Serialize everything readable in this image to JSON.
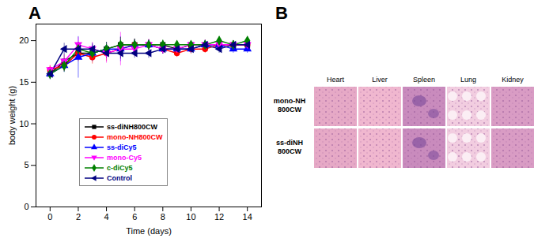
{
  "chart_data": {
    "type": "line",
    "title": "A",
    "x_label": "Time (days)",
    "y_label": "body weight (g)",
    "x": [
      0,
      1,
      2,
      3,
      4,
      5,
      6,
      7,
      8,
      9,
      10,
      11,
      12,
      13,
      14
    ],
    "xlim": [
      -1,
      15
    ],
    "xticks": [
      0,
      2,
      4,
      6,
      8,
      10,
      12,
      14
    ],
    "ylim": [
      0,
      22
    ],
    "yticks": [
      0,
      5,
      10,
      15,
      20
    ],
    "legend": "lower left",
    "series": [
      {
        "name": "ss-diNH800CW",
        "color": "#000000",
        "marker": "square",
        "values": [
          16,
          17.5,
          18.5,
          18.5,
          19,
          19.5,
          19.5,
          19.5,
          19.5,
          19,
          19.5,
          19.5,
          19.5,
          19.5,
          19.5
        ],
        "errors": [
          0.6,
          0.8,
          0.7,
          0.6,
          0.8,
          0.9,
          0.7,
          0.6,
          0.5,
          0.6,
          0.5,
          0.6,
          0.5,
          0.5,
          0.6
        ]
      },
      {
        "name": "mono-NH800CW",
        "color": "#ff0000",
        "marker": "circle",
        "values": [
          16.5,
          17,
          18.5,
          18,
          18.5,
          19,
          19.5,
          19.5,
          19,
          18.5,
          19,
          19,
          19.5,
          19.5,
          19.5
        ],
        "errors": [
          0.5,
          0.7,
          1.0,
          0.8,
          1.0,
          0.8,
          0.7,
          0.6,
          0.6,
          0.5,
          0.6,
          0.5,
          0.5,
          0.5,
          0.5
        ]
      },
      {
        "name": "ss-diCy5",
        "color": "#0000ff",
        "marker": "triangle",
        "values": [
          16,
          17,
          18,
          18.5,
          19,
          19,
          19.5,
          19.5,
          19,
          19,
          19,
          19.5,
          19.5,
          19,
          19
        ],
        "errors": [
          0.6,
          0.8,
          2.5,
          1.0,
          0.8,
          1.5,
          0.7,
          0.6,
          0.6,
          0.5,
          0.5,
          0.5,
          0.5,
          0.5,
          0.5
        ]
      },
      {
        "name": "mono-Cy5",
        "color": "#ff00ff",
        "marker": "triangle-down",
        "values": [
          16.5,
          17.5,
          19.5,
          19,
          18.5,
          19,
          19,
          19.5,
          19,
          19,
          19.5,
          19.5,
          19.5,
          19.5,
          19.5
        ],
        "errors": [
          0.5,
          0.8,
          0.9,
          0.8,
          1.2,
          2.0,
          0.9,
          0.7,
          0.6,
          0.6,
          0.5,
          0.6,
          0.5,
          0.5,
          0.5
        ]
      },
      {
        "name": "c-diCy5",
        "color": "#008000",
        "marker": "diamond",
        "values": [
          16,
          17,
          19,
          18.5,
          19,
          19.5,
          19.5,
          19.5,
          19.5,
          19.5,
          19.5,
          19.5,
          20,
          19.5,
          20
        ],
        "errors": [
          0.6,
          0.8,
          0.8,
          0.7,
          0.8,
          0.9,
          0.7,
          0.6,
          0.6,
          0.5,
          0.5,
          0.5,
          0.5,
          0.5,
          0.5
        ]
      },
      {
        "name": "Control",
        "color": "#000080",
        "marker": "triangle-left",
        "values": [
          16,
          19,
          19,
          19,
          18.5,
          18.5,
          18.5,
          18.5,
          19,
          19,
          19,
          19.5,
          19,
          19.5,
          19.5
        ],
        "errors": [
          0.7,
          0.7,
          0.8,
          0.7,
          0.6,
          0.7,
          0.6,
          0.6,
          0.6,
          0.5,
          0.5,
          0.5,
          0.5,
          0.5,
          0.5
        ]
      }
    ]
  },
  "histology": {
    "label": "B",
    "columns": [
      "Heart",
      "Liver",
      "Spleen",
      "Lung",
      "Kidney"
    ],
    "rows": [
      {
        "label": [
          "mono-NH",
          "800CW"
        ]
      },
      {
        "label": [
          "ss-diNH",
          "800CW"
        ]
      }
    ]
  }
}
